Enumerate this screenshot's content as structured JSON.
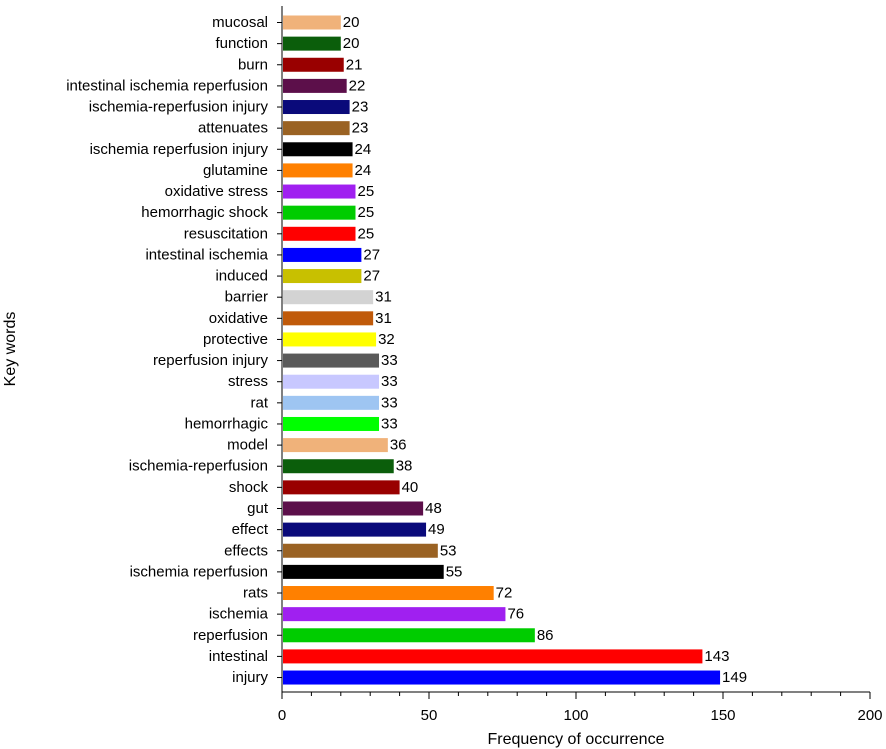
{
  "chart_data": {
    "type": "bar",
    "orientation": "horizontal",
    "xlabel": "Frequency of occurrence",
    "ylabel": "Key words",
    "xlim": [
      0,
      200
    ],
    "x_ticks": [
      0,
      50,
      100,
      150,
      200
    ],
    "grid": false,
    "categories": [
      "mucosal",
      "function",
      "burn",
      "intestinal ischemia reperfusion",
      "ischemia-reperfusion injury",
      "attenuates",
      "ischemia reperfusion injury",
      "glutamine",
      "oxidative stress",
      "hemorrhagic shock",
      "resuscitation",
      "intestinal ischemia",
      "induced",
      "barrier",
      "oxidative",
      "protective",
      "reperfusion injury",
      "stress",
      "rat",
      "hemorrhagic",
      "model",
      "ischemia-reperfusion",
      "shock",
      "gut",
      "effect",
      "effects",
      "ischemia reperfusion",
      "rats",
      "ischemia",
      "reperfusion",
      "intestinal",
      "injury"
    ],
    "values": [
      20,
      20,
      21,
      22,
      23,
      23,
      24,
      24,
      25,
      25,
      25,
      27,
      27,
      31,
      31,
      32,
      33,
      33,
      33,
      33,
      36,
      38,
      40,
      48,
      49,
      53,
      55,
      72,
      76,
      86,
      143,
      149
    ],
    "colors": [
      "#f0b27a",
      "#0b5e0b",
      "#990000",
      "#5c0f4a",
      "#0a0a7a",
      "#9a6223",
      "#000000",
      "#ff8000",
      "#a020f0",
      "#00cc00",
      "#ff0000",
      "#0000ff",
      "#c8c000",
      "#d3d3d3",
      "#c05a0a",
      "#ffff00",
      "#5a5a5a",
      "#c8c8ff",
      "#9ec5f2",
      "#00ff00",
      "#f0b27a",
      "#0b5e0b",
      "#990000",
      "#5c0f4a",
      "#0a0a7a",
      "#9a6223",
      "#000000",
      "#ff8000",
      "#a020f0",
      "#00cc00",
      "#ff0000",
      "#0000ff"
    ]
  }
}
